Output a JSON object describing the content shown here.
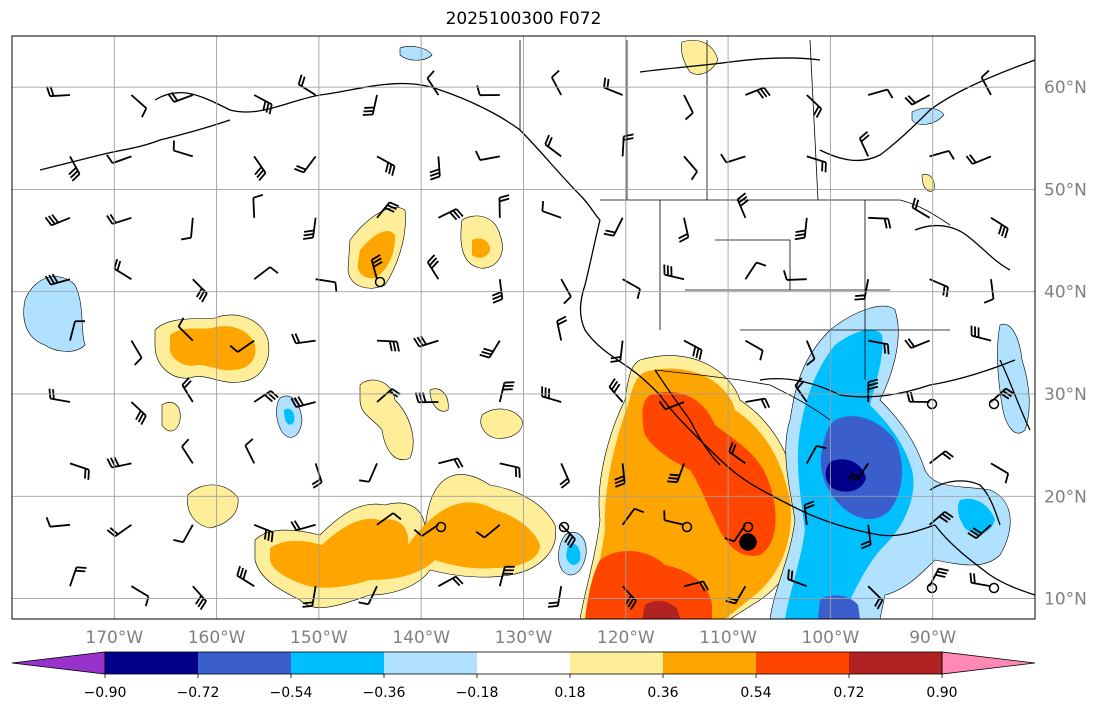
{
  "title": "2025100300 F072",
  "map": {
    "lon_range": [
      -180,
      -80
    ],
    "lat_range": [
      8,
      65
    ],
    "gridlines": true,
    "lon_ticks": [
      {
        "lon": -170,
        "label": "170°W"
      },
      {
        "lon": -160,
        "label": "160°W"
      },
      {
        "lon": -150,
        "label": "150°W"
      },
      {
        "lon": -140,
        "label": "140°W"
      },
      {
        "lon": -130,
        "label": "130°W"
      },
      {
        "lon": -120,
        "label": "120°W"
      },
      {
        "lon": -110,
        "label": "110°W"
      },
      {
        "lon": -100,
        "label": "100°W"
      },
      {
        "lon": -90,
        "label": "90°W"
      }
    ],
    "lat_ticks": [
      {
        "lat": 10,
        "label": "10°N"
      },
      {
        "lat": 20,
        "label": "20°N"
      },
      {
        "lat": 30,
        "label": "30°N"
      },
      {
        "lat": 40,
        "label": "40°N"
      },
      {
        "lat": 50,
        "label": "50°N"
      },
      {
        "lat": 60,
        "label": "60°N"
      }
    ]
  },
  "colorbar": {
    "levels": [
      -0.9,
      -0.72,
      -0.54,
      -0.36,
      -0.18,
      0.18,
      0.36,
      0.54,
      0.72,
      0.9
    ],
    "tick_labels": [
      "−0.90",
      "−0.72",
      "−0.54",
      "−0.36",
      "−0.18",
      "0.18",
      "0.36",
      "0.54",
      "0.72",
      "0.90"
    ],
    "under_color": "#9932cc",
    "over_color": "#ff88b4",
    "colors": [
      "#00008b",
      "#3a5fcd",
      "#00bfff",
      "#b0e2ff",
      "#ffffff",
      "#ffee99",
      "#ffa500",
      "#ff4500",
      "#b22222"
    ]
  },
  "field_colors": {
    "neg_strong": "#00008b",
    "neg_med": "#3a5fcd",
    "neg_light": "#00bfff",
    "neg_pale": "#b0e2ff",
    "pos_pale": "#ffee99",
    "pos_med": "#ffa500",
    "pos_strong": "#ff4500",
    "pos_max": "#b22222"
  }
}
